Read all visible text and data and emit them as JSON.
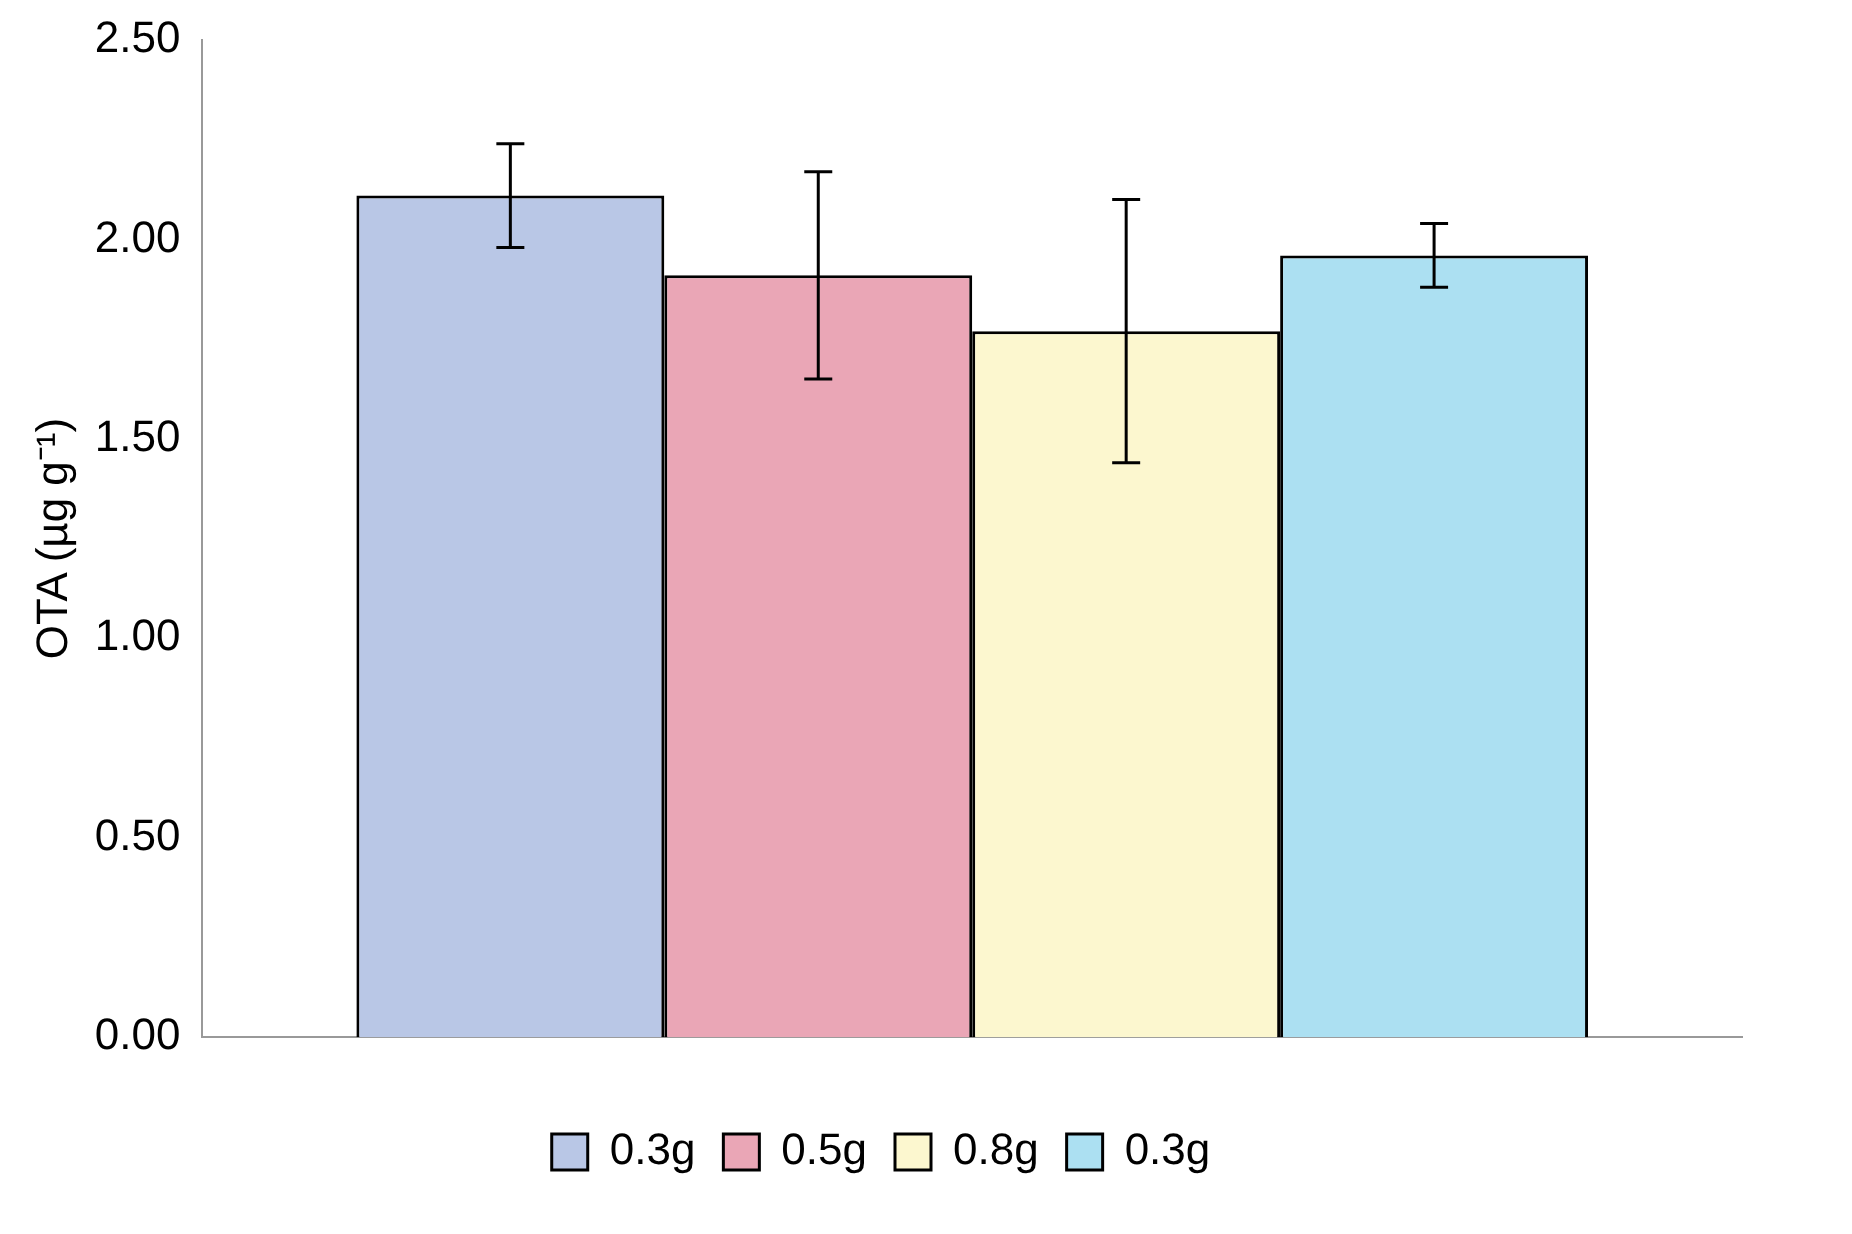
{
  "chart_data": {
    "type": "bar",
    "ylabel": "OTA (µg g⁻¹)",
    "categories": [
      null
    ],
    "series": [
      {
        "name": "0.3g",
        "color": "#b9c7e6",
        "values": [
          2.11
        ],
        "errors": [
          0.13
        ]
      },
      {
        "name": "0.5g",
        "color": "#eaa6b6",
        "values": [
          1.91
        ],
        "errors": [
          0.26
        ]
      },
      {
        "name": "0.8g",
        "color": "#fcf7cf",
        "values": [
          1.77
        ],
        "errors": [
          0.33
        ]
      },
      {
        "name": "0.3g",
        "color": "#ace0f2",
        "values": [
          1.96
        ],
        "errors": [
          0.08
        ]
      }
    ],
    "ylim": [
      0,
      2.5
    ],
    "yticks": [
      {
        "value": 0,
        "label": "0.00"
      },
      {
        "value": 0.5,
        "label": "0.50"
      },
      {
        "value": 1,
        "label": "1.00"
      },
      {
        "value": 1.5,
        "label": "1.50"
      },
      {
        "value": 2,
        "label": "2.00"
      },
      {
        "value": 2.5,
        "label": "2.50"
      }
    ],
    "grid": false,
    "legend": "bottom"
  }
}
